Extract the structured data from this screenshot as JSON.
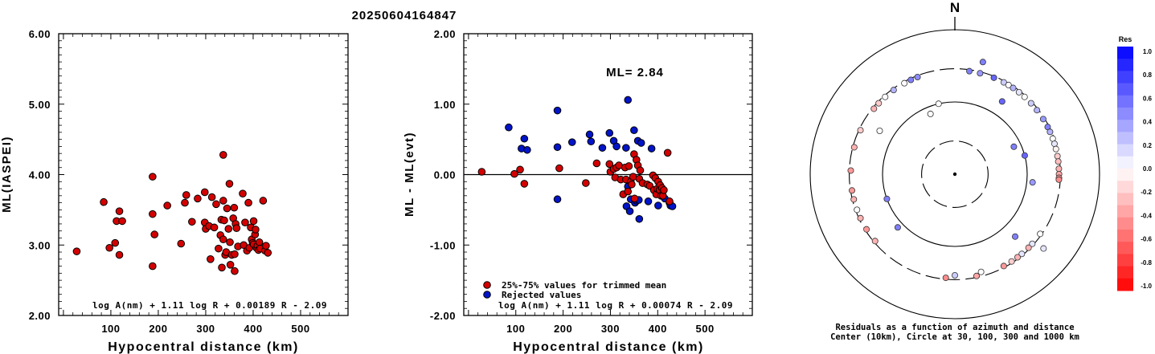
{
  "title": "20250604164847",
  "colors": {
    "used": "#d40000",
    "rejected": "#0014c8",
    "frame": "#000000"
  },
  "chart_data": [
    {
      "type": "scatter",
      "xlabel": "Hypocentral distance (km)",
      "ylabel": "ML(IASPEI)",
      "xlim": [
        -10,
        600
      ],
      "ylim": [
        2.0,
        6.0
      ],
      "xticks": [
        "100",
        "200",
        "300",
        "400",
        "500"
      ],
      "yticks": [
        "2.00",
        "3.00",
        "4.00",
        "5.00",
        "6.00"
      ],
      "formula": "log A(nm) + 1.11 log R + 0.00189 R - 2.09",
      "points": [
        [
          28,
          2.91
        ],
        [
          85,
          3.61
        ],
        [
          97,
          2.96
        ],
        [
          109,
          3.03
        ],
        [
          112,
          3.34
        ],
        [
          118,
          3.48
        ],
        [
          118,
          2.86
        ],
        [
          124,
          3.34
        ],
        [
          188,
          3.97
        ],
        [
          188,
          3.44
        ],
        [
          188,
          2.7
        ],
        [
          192,
          3.15
        ],
        [
          219,
          3.56
        ],
        [
          248,
          3.02
        ],
        [
          256,
          3.6
        ],
        [
          259,
          3.71
        ],
        [
          271,
          3.33
        ],
        [
          283,
          3.66
        ],
        [
          298,
          3.75
        ],
        [
          298,
          3.32
        ],
        [
          300,
          3.23
        ],
        [
          307,
          3.27
        ],
        [
          310,
          2.8
        ],
        [
          313,
          3.68
        ],
        [
          318,
          3.25
        ],
        [
          322,
          3.58
        ],
        [
          327,
          2.95
        ],
        [
          331,
          3.14
        ],
        [
          333,
          3.36
        ],
        [
          334,
          2.68
        ],
        [
          337,
          4.28
        ],
        [
          337,
          3.08
        ],
        [
          337,
          3.63
        ],
        [
          339,
          3.35
        ],
        [
          341,
          2.86
        ],
        [
          343,
          2.9
        ],
        [
          345,
          3.52
        ],
        [
          348,
          3.23
        ],
        [
          350,
          3.87
        ],
        [
          351,
          3.04
        ],
        [
          352,
          2.72
        ],
        [
          355,
          2.86
        ],
        [
          358,
          3.38
        ],
        [
          360,
          3.53
        ],
        [
          361,
          2.87
        ],
        [
          361,
          2.63
        ],
        [
          363,
          3.3
        ],
        [
          365,
          3.24
        ],
        [
          368,
          2.98
        ],
        [
          378,
          3.73
        ],
        [
          380,
          3.0
        ],
        [
          383,
          3.32
        ],
        [
          387,
          2.92
        ],
        [
          390,
          3.6
        ],
        [
          392,
          2.96
        ],
        [
          395,
          3.25
        ],
        [
          397,
          3.08
        ],
        [
          399,
          3.03
        ],
        [
          401,
          3.34
        ],
        [
          401,
          3.01
        ],
        [
          404,
          3.15
        ],
        [
          405,
          3.22
        ],
        [
          407,
          2.96
        ],
        [
          409,
          2.99
        ],
        [
          411,
          2.93
        ],
        [
          413,
          3.04
        ],
        [
          415,
          2.95
        ],
        [
          421,
          3.63
        ],
        [
          425,
          2.92
        ],
        [
          427,
          2.99
        ],
        [
          431,
          2.89
        ]
      ]
    },
    {
      "type": "scatter",
      "xlabel": "Hypocentral distance (km)",
      "ylabel": "ML - ML(evt)",
      "xlim": [
        -10,
        600
      ],
      "ylim": [
        -2.0,
        2.0
      ],
      "xticks": [
        "100",
        "200",
        "300",
        "400",
        "500"
      ],
      "yticks": [
        "-2.00",
        "-1.00",
        "0.00",
        "1.00",
        "2.00"
      ],
      "annotation": "ML= 2.84",
      "formula": "log A(nm) + 1.11 log R + 0.00074 R - 2.09",
      "legend": [
        "25%-75% values for trimmed mean",
        "Rejected values"
      ],
      "legend_position": "bottom-left",
      "used": [
        [
          28,
          0.04
        ],
        [
          97,
          0.01
        ],
        [
          109,
          0.07
        ],
        [
          118,
          -0.13
        ],
        [
          192,
          0.09
        ],
        [
          248,
          -0.12
        ],
        [
          271,
          0.16
        ],
        [
          298,
          0.15
        ],
        [
          300,
          0.04
        ],
        [
          307,
          0.08
        ],
        [
          310,
          -0.04
        ],
        [
          313,
          0.1
        ],
        [
          318,
          0.13
        ],
        [
          322,
          -0.07
        ],
        [
          327,
          -0.28
        ],
        [
          331,
          0.1
        ],
        [
          333,
          -0.07
        ],
        [
          337,
          -0.24
        ],
        [
          339,
          0.12
        ],
        [
          343,
          -0.1
        ],
        [
          345,
          -0.14
        ],
        [
          348,
          -0.03
        ],
        [
          350,
          0.29
        ],
        [
          351,
          -0.34
        ],
        [
          355,
          0.21
        ],
        [
          358,
          0.13
        ],
        [
          361,
          -0.06
        ],
        [
          363,
          0.06
        ],
        [
          368,
          -0.12
        ],
        [
          378,
          -0.14
        ],
        [
          383,
          -0.16
        ],
        [
          390,
          -0.01
        ],
        [
          392,
          -0.22
        ],
        [
          395,
          -0.05
        ],
        [
          397,
          -0.28
        ],
        [
          399,
          -0.2
        ],
        [
          401,
          -0.1
        ],
        [
          404,
          -0.22
        ],
        [
          405,
          -0.15
        ],
        [
          407,
          -0.3
        ],
        [
          409,
          -0.19
        ],
        [
          411,
          -0.3
        ],
        [
          413,
          -0.22
        ],
        [
          421,
          0.31
        ],
        [
          425,
          -0.38
        ]
      ],
      "rejected": [
        [
          85,
          0.67
        ],
        [
          112,
          0.37
        ],
        [
          118,
          0.51
        ],
        [
          124,
          0.35
        ],
        [
          188,
          0.91
        ],
        [
          188,
          0.39
        ],
        [
          188,
          -0.35
        ],
        [
          219,
          0.46
        ],
        [
          256,
          0.57
        ],
        [
          259,
          0.47
        ],
        [
          283,
          0.38
        ],
        [
          298,
          0.59
        ],
        [
          307,
          0.48
        ],
        [
          313,
          0.4
        ],
        [
          333,
          0.38
        ],
        [
          334,
          -0.45
        ],
        [
          337,
          1.06
        ],
        [
          337,
          -0.17
        ],
        [
          341,
          -0.52
        ],
        [
          343,
          -0.35
        ],
        [
          350,
          0.63
        ],
        [
          352,
          -0.4
        ],
        [
          355,
          -0.37
        ],
        [
          358,
          0.48
        ],
        [
          360,
          -0.36
        ],
        [
          361,
          -0.63
        ],
        [
          365,
          0.45
        ],
        [
          380,
          -0.38
        ],
        [
          387,
          0.37
        ],
        [
          401,
          -0.44
        ],
        [
          415,
          -0.34
        ],
        [
          425,
          -0.4
        ],
        [
          427,
          -0.44
        ],
        [
          431,
          -0.45
        ]
      ]
    },
    {
      "type": "scatter",
      "title": "N",
      "caption_line1": "Residuals as a function of azimuth and distance",
      "caption_line2": "Center (10km), Circle at 30, 100, 300 and 1000 km",
      "colorbar": {
        "title": "Res",
        "ticks": [
          "1.0",
          "0.8",
          "0.6",
          "0.4",
          "0.2",
          "0.0",
          "-0.2",
          "-0.4",
          "-0.6",
          "-0.8",
          "-1.0"
        ],
        "range": [
          -1.0,
          1.0
        ]
      },
      "rings_km": [
        10,
        30,
        100,
        300,
        1000
      ],
      "stations": [
        [
          8,
          0.4,
          0.5
        ],
        [
          14,
          0.4,
          0.4
        ],
        [
          22,
          0.4,
          0.6
        ],
        [
          28,
          0.4,
          0.2
        ],
        [
          31,
          0.4,
          0.0
        ],
        [
          34,
          0.4,
          0.3
        ],
        [
          38,
          0.4,
          0.1
        ],
        [
          42,
          0.4,
          0.0
        ],
        [
          47,
          0.4,
          0.2
        ],
        [
          52,
          0.4,
          0.3
        ],
        [
          58,
          0.4,
          0.4
        ],
        [
          63,
          0.4,
          0.5
        ],
        [
          66,
          0.4,
          0.3
        ],
        [
          70,
          0.4,
          0.0
        ],
        [
          73,
          0.4,
          0.1
        ],
        [
          76,
          0.4,
          -0.05
        ],
        [
          80,
          0.4,
          -0.2
        ],
        [
          83,
          0.4,
          -0.25
        ],
        [
          87,
          0.4,
          -0.3
        ],
        [
          90,
          0.4,
          -0.35
        ],
        [
          92,
          0.4,
          -0.4
        ],
        [
          93,
          0.4,
          -0.45
        ],
        [
          125,
          0.4,
          0.0
        ],
        [
          132,
          0.4,
          0.1
        ],
        [
          135,
          0.4,
          -0.3
        ],
        [
          140,
          0.4,
          0.1
        ],
        [
          143,
          0.4,
          -0.3
        ],
        [
          147,
          0.4,
          -0.2
        ],
        [
          152,
          0.4,
          -0.4
        ],
        [
          168,
          0.4,
          -0.35
        ],
        [
          185,
          0.4,
          -0.45
        ],
        [
          230,
          0.4,
          -0.3
        ],
        [
          238,
          0.4,
          -0.4
        ],
        [
          245,
          0.4,
          -0.3
        ],
        [
          250,
          0.4,
          0.0
        ],
        [
          256,
          0.4,
          -0.3
        ],
        [
          261,
          0.4,
          -0.4
        ],
        [
          272,
          0.4,
          -0.4
        ],
        [
          285,
          0.4,
          -0.3
        ],
        [
          295,
          0.4,
          -0.2
        ],
        [
          309,
          0.4,
          -0.3
        ],
        [
          313,
          0.4,
          -0.2
        ],
        [
          318,
          0.4,
          0.0
        ],
        [
          324,
          0.4,
          0.3
        ],
        [
          331,
          0.4,
          0.0
        ],
        [
          335,
          0.4,
          0.5
        ],
        [
          339,
          0.4,
          0.45
        ],
        [
          33,
          0.6,
          0.6
        ],
        [
          14,
          0.8,
          0.5
        ],
        [
          65,
          0.45,
          0.5
        ],
        [
          75,
          0.5,
          0.6
        ],
        [
          96,
          0.3,
          0.4
        ],
        [
          130,
          0.8,
          0.1
        ],
        [
          136,
          0.6,
          0.5
        ],
        [
          165,
          0.7,
          0.0
        ],
        [
          180,
          0.7,
          0.2
        ],
        [
          227,
          0.3,
          0.5
        ],
        [
          250,
          0.5,
          0.5
        ],
        [
          300,
          0.6,
          0.0
        ],
        [
          338,
          0.45,
          0.0
        ],
        [
          347,
          0.5,
          0.0
        ]
      ]
    }
  ]
}
